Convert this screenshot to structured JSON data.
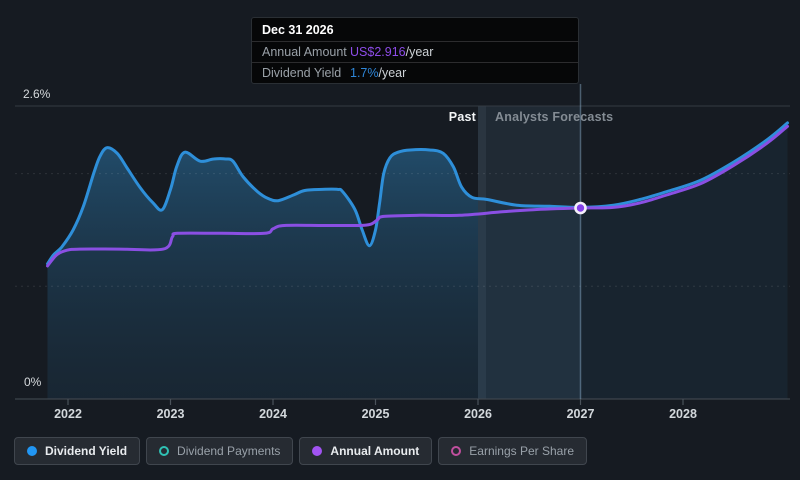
{
  "tooltip": {
    "date": "Dec 31 2026",
    "rows": [
      {
        "label": "Annual Amount",
        "value": "US$2.916",
        "suffix": "/year",
        "value_color": "#8d4ce8"
      },
      {
        "label": "Dividend Yield",
        "value": "1.7%",
        "suffix": "/year",
        "value_color": "#2e86d8"
      }
    ]
  },
  "chart_data": {
    "type": "line",
    "y_top_label": "2.6%",
    "y_bottom_label": "0%",
    "ylim": [
      0,
      2.6
    ],
    "xlim": [
      2021.8,
      2029.05
    ],
    "x_ticks": [
      2022,
      2023,
      2024,
      2025,
      2026,
      2027,
      2028
    ],
    "x_tick_labels": [
      "2022",
      "2023",
      "2024",
      "2025",
      "2026",
      "2027",
      "2028"
    ],
    "gridlines_pct": [
      1.0,
      2.0
    ],
    "grid": "horizontal-dotted",
    "past_label": "Past",
    "forecast_label": "Analysts Forecasts",
    "divider_year": 2026.0,
    "hover_year": 2027.0,
    "marker": {
      "year": 2027.0,
      "value": 1.695,
      "color": "#8440e8"
    },
    "legend_position": "bottom",
    "series": [
      {
        "name": "Dividend Yield",
        "color": "#2e8fd9",
        "points": [
          [
            2021.8,
            1.2
          ],
          [
            2021.86,
            1.28
          ],
          [
            2021.94,
            1.35
          ],
          [
            2022.05,
            1.5
          ],
          [
            2022.15,
            1.71
          ],
          [
            2022.25,
            2.0
          ],
          [
            2022.31,
            2.15
          ],
          [
            2022.38,
            2.23
          ],
          [
            2022.48,
            2.18
          ],
          [
            2022.57,
            2.06
          ],
          [
            2022.7,
            1.88
          ],
          [
            2022.83,
            1.74
          ],
          [
            2022.92,
            1.68
          ],
          [
            2023.0,
            1.86
          ],
          [
            2023.06,
            2.06
          ],
          [
            2023.14,
            2.19
          ],
          [
            2023.29,
            2.11
          ],
          [
            2023.42,
            2.13
          ],
          [
            2023.54,
            2.13
          ],
          [
            2023.61,
            2.11
          ],
          [
            2023.71,
            1.97
          ],
          [
            2023.85,
            1.84
          ],
          [
            2023.95,
            1.78
          ],
          [
            2024.05,
            1.76
          ],
          [
            2024.2,
            1.81
          ],
          [
            2024.31,
            1.85
          ],
          [
            2024.48,
            1.86
          ],
          [
            2024.63,
            1.86
          ],
          [
            2024.68,
            1.84
          ],
          [
            2024.8,
            1.68
          ],
          [
            2024.87,
            1.5
          ],
          [
            2024.94,
            1.36
          ],
          [
            2025.0,
            1.5
          ],
          [
            2025.04,
            1.74
          ],
          [
            2025.08,
            2.0
          ],
          [
            2025.14,
            2.14
          ],
          [
            2025.22,
            2.19
          ],
          [
            2025.34,
            2.21
          ],
          [
            2025.53,
            2.21
          ],
          [
            2025.66,
            2.18
          ],
          [
            2025.76,
            2.06
          ],
          [
            2025.84,
            1.88
          ],
          [
            2025.94,
            1.79
          ],
          [
            2026.09,
            1.77
          ],
          [
            2026.38,
            1.72
          ],
          [
            2026.7,
            1.71
          ],
          [
            2027.0,
            1.7
          ],
          [
            2027.32,
            1.72
          ],
          [
            2027.58,
            1.77
          ],
          [
            2027.84,
            1.84
          ],
          [
            2028.17,
            1.94
          ],
          [
            2028.49,
            2.1
          ],
          [
            2028.82,
            2.3
          ],
          [
            2029.02,
            2.45
          ]
        ]
      },
      {
        "name": "Annual Amount",
        "color": "#8a4fe3",
        "points": [
          [
            2021.8,
            1.18
          ],
          [
            2021.89,
            1.28
          ],
          [
            2021.99,
            1.32
          ],
          [
            2022.12,
            1.33
          ],
          [
            2022.5,
            1.33
          ],
          [
            2022.93,
            1.33
          ],
          [
            2023.02,
            1.44
          ],
          [
            2023.07,
            1.47
          ],
          [
            2023.5,
            1.47
          ],
          [
            2023.92,
            1.47
          ],
          [
            2024.0,
            1.51
          ],
          [
            2024.11,
            1.54
          ],
          [
            2024.5,
            1.54
          ],
          [
            2024.83,
            1.54
          ],
          [
            2024.95,
            1.55
          ],
          [
            2025.02,
            1.59
          ],
          [
            2025.08,
            1.62
          ],
          [
            2025.43,
            1.63
          ],
          [
            2025.82,
            1.63
          ],
          [
            2026.22,
            1.66
          ],
          [
            2026.54,
            1.68
          ],
          [
            2027.0,
            1.695
          ],
          [
            2027.32,
            1.7
          ],
          [
            2027.58,
            1.74
          ],
          [
            2027.84,
            1.81
          ],
          [
            2028.17,
            1.91
          ],
          [
            2028.49,
            2.07
          ],
          [
            2028.82,
            2.27
          ],
          [
            2029.02,
            2.42
          ]
        ]
      }
    ]
  },
  "legend": [
    {
      "label": "Dividend Yield",
      "marker": "filled",
      "color": "#2196f3",
      "active": true
    },
    {
      "label": "Dividend Payments",
      "marker": "hollow",
      "color": "#2fc1b4",
      "active": false
    },
    {
      "label": "Annual Amount",
      "marker": "filled",
      "color": "#a153f2",
      "active": true
    },
    {
      "label": "Earnings Per Share",
      "marker": "hollow",
      "color": "#c04f9e",
      "active": false
    }
  ]
}
